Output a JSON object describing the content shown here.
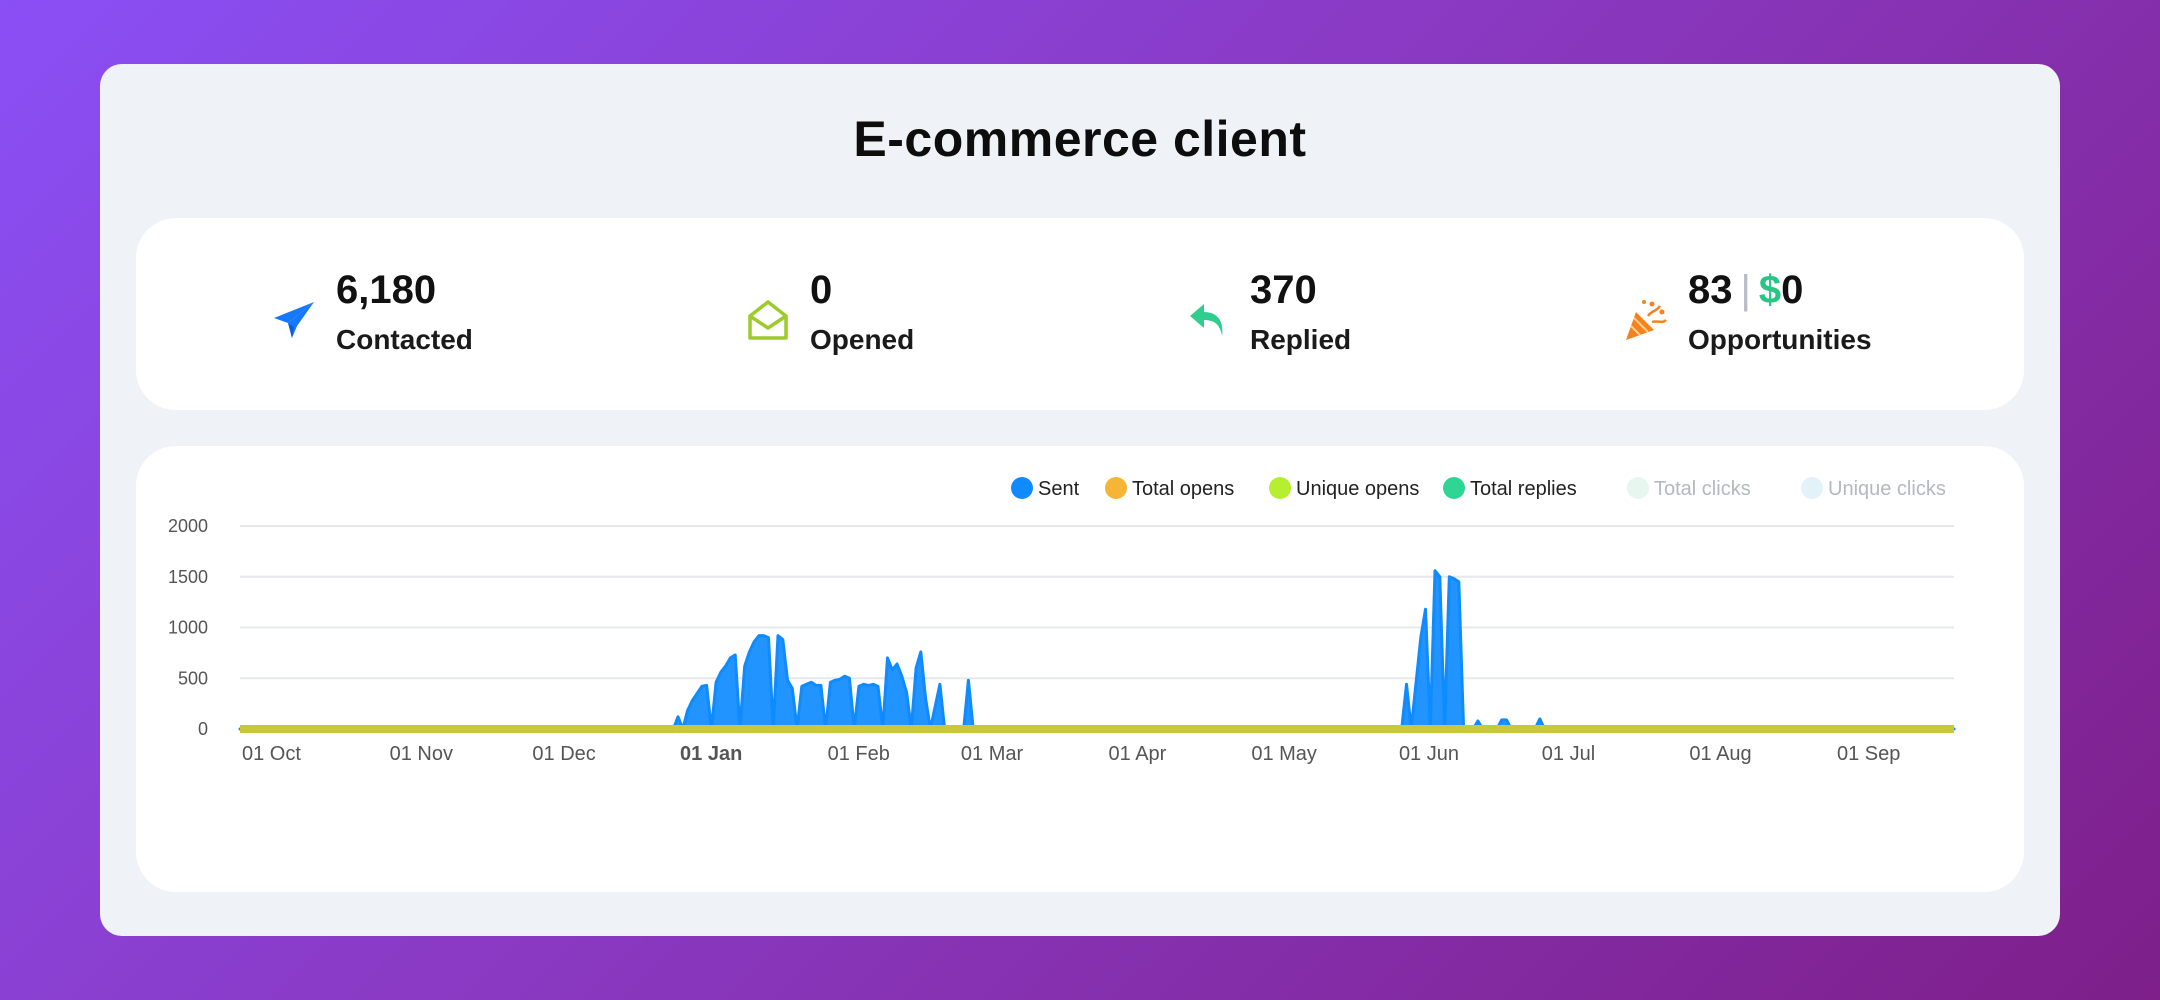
{
  "title": "E-commerce client",
  "stats": [
    {
      "value": "6,180",
      "label": "Contacted",
      "icon": "paper-plane-icon",
      "color": "#1677ff"
    },
    {
      "value": "0",
      "label": "Opened",
      "icon": "open-envelope-icon",
      "color": "#9ccc2a"
    },
    {
      "value": "370",
      "label": "Replied",
      "icon": "reply-arrow-icon",
      "color": "#2ecf8e"
    },
    {
      "value": "83",
      "separator": "|",
      "money_symbol": "$",
      "money_value": "0",
      "label": "Opportunities",
      "icon": "party-popper-icon",
      "color": "#f5811f"
    }
  ],
  "chart_data": {
    "type": "area",
    "legend": [
      {
        "name": "Sent",
        "color": "#0f8bff",
        "enabled": true
      },
      {
        "name": "Total opens",
        "color": "#f6b534",
        "enabled": true
      },
      {
        "name": "Unique opens",
        "color": "#b6ef2f",
        "enabled": true
      },
      {
        "name": "Total replies",
        "color": "#2fd595",
        "enabled": true
      },
      {
        "name": "Total clicks",
        "color": "#e7f6ee",
        "enabled": false
      },
      {
        "name": "Unique clicks",
        "color": "#e3f1f8",
        "enabled": false
      }
    ],
    "ylim": [
      0,
      2000
    ],
    "yticks": [
      0,
      500,
      1000,
      1500,
      2000
    ],
    "xticks": [
      {
        "label": "01 Oct",
        "day": 0,
        "bold": false
      },
      {
        "label": "01 Nov",
        "day": 31,
        "bold": false
      },
      {
        "label": "01 Dec",
        "day": 61,
        "bold": false
      },
      {
        "label": "01 Jan",
        "day": 92,
        "bold": true
      },
      {
        "label": "01 Feb",
        "day": 123,
        "bold": false
      },
      {
        "label": "01 Mar",
        "day": 151,
        "bold": false
      },
      {
        "label": "01 Apr",
        "day": 182,
        "bold": false
      },
      {
        "label": "01 May",
        "day": 212,
        "bold": false
      },
      {
        "label": "01 Jun",
        "day": 243,
        "bold": false
      },
      {
        "label": "01 Jul",
        "day": 273,
        "bold": false
      },
      {
        "label": "01 Aug",
        "day": 304,
        "bold": false
      },
      {
        "label": "01 Sep",
        "day": 335,
        "bold": false
      }
    ],
    "xrange_days": [
      0,
      360
    ],
    "series": [
      {
        "name": "Sent",
        "points": [
          [
            0,
            0
          ],
          [
            91,
            0
          ],
          [
            92,
            120
          ],
          [
            93,
            0
          ],
          [
            94,
            180
          ],
          [
            95,
            280
          ],
          [
            96,
            350
          ],
          [
            97,
            420
          ],
          [
            98,
            430
          ],
          [
            99,
            0
          ],
          [
            100,
            460
          ],
          [
            101,
            560
          ],
          [
            102,
            620
          ],
          [
            103,
            700
          ],
          [
            104,
            730
          ],
          [
            105,
            0
          ],
          [
            106,
            620
          ],
          [
            107,
            760
          ],
          [
            108,
            860
          ],
          [
            109,
            920
          ],
          [
            110,
            920
          ],
          [
            111,
            900
          ],
          [
            112,
            0
          ],
          [
            113,
            920
          ],
          [
            114,
            880
          ],
          [
            115,
            480
          ],
          [
            116,
            400
          ],
          [
            117,
            0
          ],
          [
            118,
            420
          ],
          [
            119,
            440
          ],
          [
            120,
            460
          ],
          [
            121,
            430
          ],
          [
            122,
            430
          ],
          [
            123,
            0
          ],
          [
            124,
            460
          ],
          [
            125,
            480
          ],
          [
            126,
            490
          ],
          [
            127,
            520
          ],
          [
            128,
            500
          ],
          [
            129,
            0
          ],
          [
            130,
            420
          ],
          [
            131,
            440
          ],
          [
            132,
            430
          ],
          [
            133,
            440
          ],
          [
            134,
            420
          ],
          [
            135,
            0
          ],
          [
            136,
            700
          ],
          [
            137,
            580
          ],
          [
            138,
            640
          ],
          [
            139,
            520
          ],
          [
            140,
            360
          ],
          [
            141,
            0
          ],
          [
            142,
            600
          ],
          [
            143,
            760
          ],
          [
            144,
            300
          ],
          [
            145,
            0
          ],
          [
            147,
            440
          ],
          [
            148,
            0
          ],
          [
            152,
            0
          ],
          [
            153,
            480
          ],
          [
            154,
            0
          ],
          [
            170,
            0
          ],
          [
            244,
            0
          ],
          [
            245,
            440
          ],
          [
            246,
            0
          ],
          [
            248,
            900
          ],
          [
            249,
            1180
          ],
          [
            250,
            0
          ],
          [
            251,
            1560
          ],
          [
            252,
            1500
          ],
          [
            253,
            0
          ],
          [
            254,
            1500
          ],
          [
            255,
            1480
          ],
          [
            256,
            1450
          ],
          [
            257,
            0
          ],
          [
            259,
            0
          ],
          [
            260,
            80
          ],
          [
            261,
            0
          ],
          [
            264,
            0
          ],
          [
            265,
            90
          ],
          [
            266,
            90
          ],
          [
            267,
            0
          ],
          [
            272,
            0
          ],
          [
            273,
            100
          ],
          [
            274,
            0
          ],
          [
            360,
            0
          ]
        ]
      },
      {
        "name": "Total opens",
        "points": [
          [
            0,
            0
          ],
          [
            360,
            0
          ]
        ]
      },
      {
        "name": "Unique opens",
        "points": [
          [
            0,
            0
          ],
          [
            360,
            0
          ]
        ]
      },
      {
        "name": "Total replies",
        "points": [
          [
            0,
            0
          ],
          [
            360,
            0
          ]
        ]
      }
    ]
  }
}
